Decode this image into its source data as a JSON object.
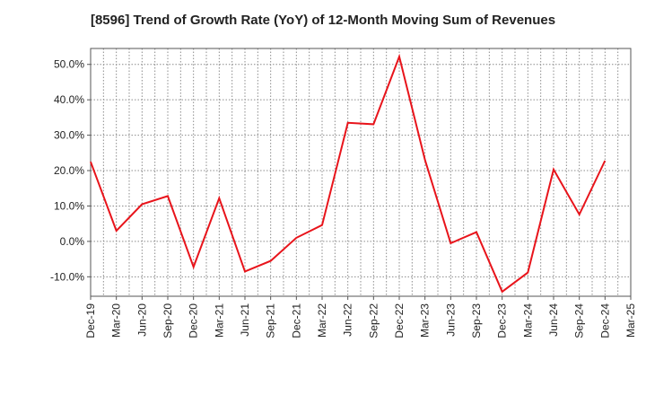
{
  "chart_data": {
    "type": "line",
    "title": "[8596]  Trend of Growth Rate (YoY) of 12-Month Moving Sum of Revenues",
    "xlabel": "",
    "ylabel": "",
    "y_unit": "%",
    "ylim": [
      -15.5,
      54.5
    ],
    "y_ticks": [
      50.0,
      40.0,
      30.0,
      20.0,
      10.0,
      0.0,
      -10.0
    ],
    "y_tick_labels": [
      "50.0%",
      "40.0%",
      "30.0%",
      "20.0%",
      "10.0%",
      "0.0%",
      "-10.0%"
    ],
    "x_tick_labels": [
      "Dec-19",
      "Mar-20",
      "Jun-20",
      "Sep-20",
      "Dec-20",
      "Mar-21",
      "Jun-21",
      "Sep-21",
      "Dec-21",
      "Mar-22",
      "Jun-22",
      "Sep-22",
      "Dec-22",
      "Mar-23",
      "Jun-23",
      "Sep-23",
      "Dec-23",
      "Mar-24",
      "Jun-24",
      "Sep-24",
      "Dec-24",
      "Mar-25"
    ],
    "grid": true,
    "grid_style": "dotted",
    "series": [
      {
        "color": "#e8141b",
        "x": [
          "Dec-19",
          "Mar-20",
          "Jun-20",
          "Sep-20",
          "Dec-20",
          "Mar-21",
          "Jun-21",
          "Sep-21",
          "Dec-21",
          "Mar-22",
          "Jun-22",
          "Sep-22",
          "Dec-22",
          "Mar-23",
          "Jun-23",
          "Sep-23",
          "Dec-23",
          "Mar-24",
          "Jun-24",
          "Sep-24",
          "Dec-24"
        ],
        "values": [
          22.5,
          3.0,
          10.5,
          12.8,
          -7.2,
          12.2,
          -8.5,
          -5.5,
          1.0,
          4.6,
          33.5,
          33.1,
          52.2,
          23.0,
          -0.5,
          2.6,
          -14.2,
          -8.8,
          20.3,
          7.6,
          22.8
        ]
      }
    ]
  }
}
